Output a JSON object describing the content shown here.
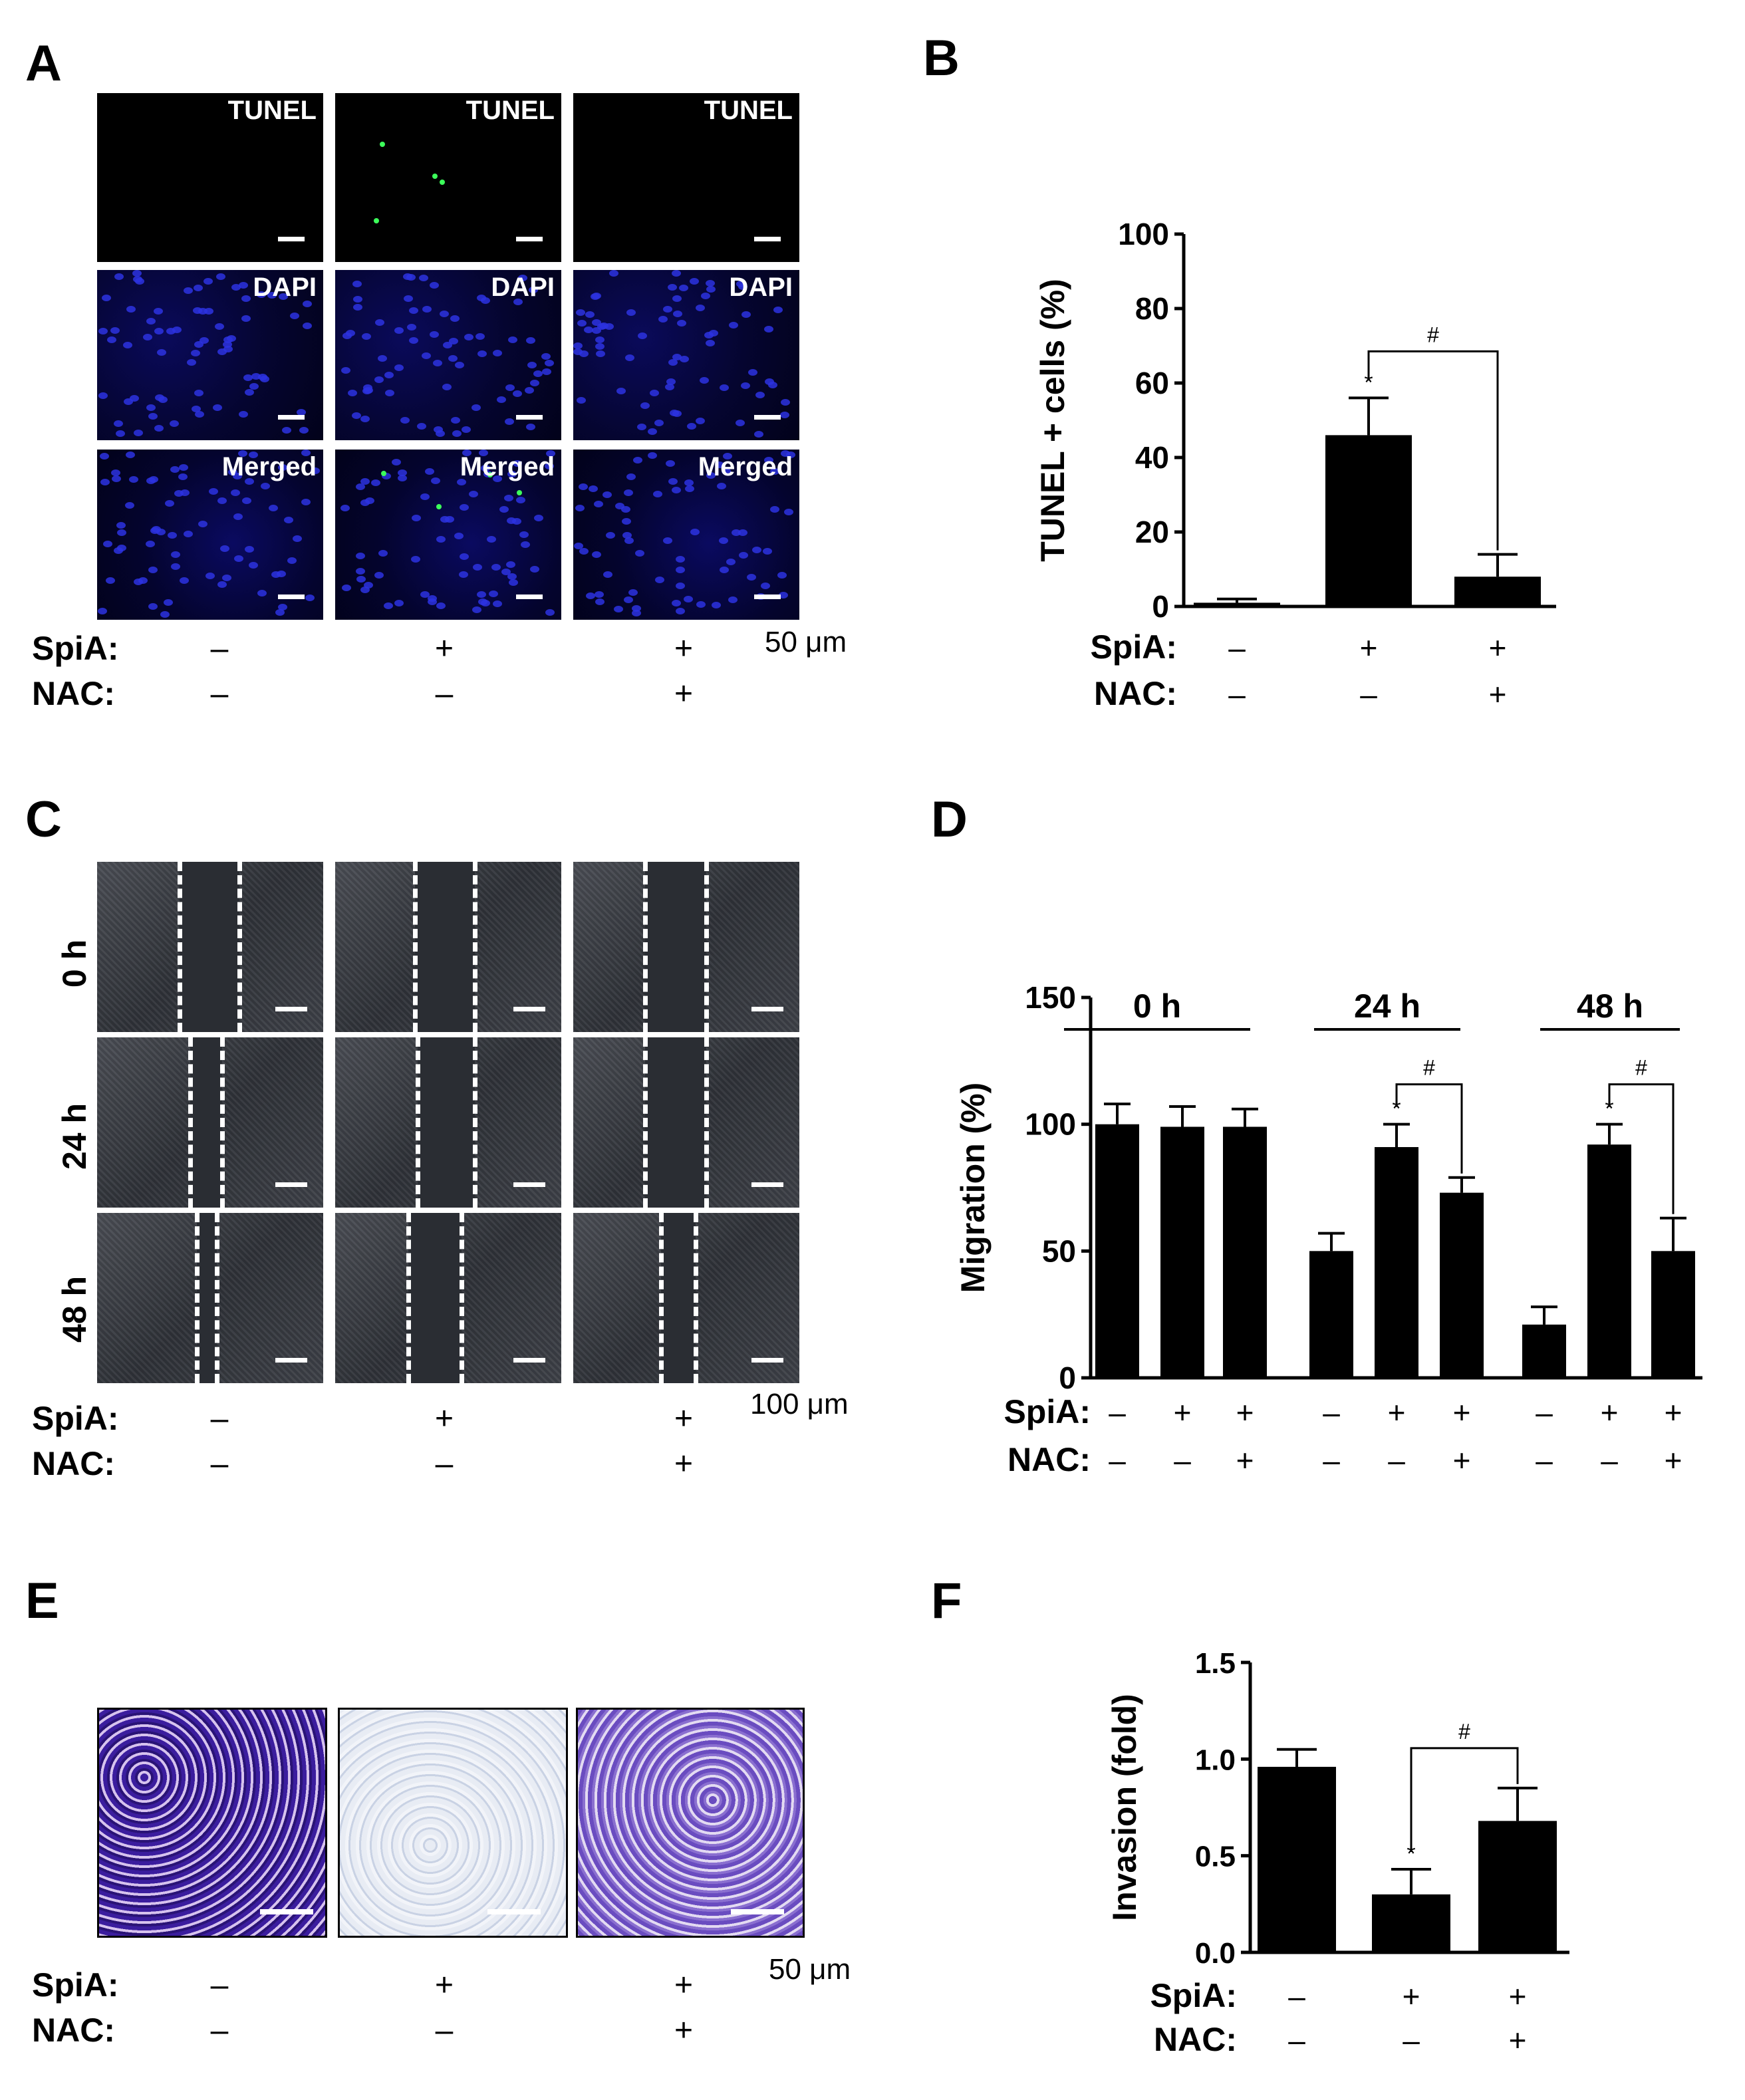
{
  "panels": {
    "A": {
      "letter": "A",
      "row_labels": [
        "TUNEL",
        "DAPI",
        "Merged"
      ],
      "scale_label": "50 μm",
      "spia_label": "SpiA:",
      "nac_label": "NAC:",
      "spia": [
        "–",
        "+",
        "+"
      ],
      "nac": [
        "–",
        "–",
        "+"
      ]
    },
    "B": {
      "letter": "B"
    },
    "C": {
      "letter": "C",
      "time_labels": [
        "0 h",
        "24 h",
        "48 h"
      ],
      "scale_label": "100 μm",
      "spia_label": "SpiA:",
      "nac_label": "NAC:",
      "spia": [
        "–",
        "+",
        "+"
      ],
      "nac": [
        "–",
        "–",
        "+"
      ]
    },
    "D": {
      "letter": "D"
    },
    "E": {
      "letter": "E",
      "scale_label": "50 μm",
      "spia_label": "SpiA:",
      "nac_label": "NAC:",
      "spia": [
        "–",
        "+",
        "+"
      ],
      "nac": [
        "–",
        "–",
        "+"
      ]
    },
    "F": {
      "letter": "F"
    }
  },
  "chart_data": [
    {
      "panel": "B",
      "type": "bar",
      "ylabel": "TUNEL + cells (%)",
      "ylim": [
        0,
        100
      ],
      "yticks": [
        0,
        20,
        40,
        60,
        80,
        100
      ],
      "values": [
        1,
        46,
        8
      ],
      "errors": [
        1,
        10,
        6
      ],
      "spia": [
        "–",
        "+",
        "+"
      ],
      "nac": [
        "–",
        "–",
        "+"
      ],
      "row_labels": [
        "SpiA:",
        "NAC:"
      ],
      "annotations": [
        {
          "bar": 1,
          "text": "*"
        }
      ],
      "brackets": [
        {
          "from": 1,
          "to": 2,
          "text": "#"
        }
      ],
      "colors": {
        "bar": "#000000"
      }
    },
    {
      "panel": "D",
      "type": "bar",
      "ylabel": "Migration (%)",
      "ylim": [
        0,
        150
      ],
      "yticks": [
        0,
        50,
        100,
        150
      ],
      "groups": [
        "0 h",
        "24 h",
        "48 h"
      ],
      "values": [
        100,
        99,
        99,
        50,
        91,
        73,
        21,
        92,
        50
      ],
      "errors": [
        8,
        8,
        7,
        7,
        9,
        6,
        7,
        8,
        13
      ],
      "spia": [
        "–",
        "+",
        "+",
        "–",
        "+",
        "+",
        "–",
        "+",
        "+"
      ],
      "nac": [
        "–",
        "–",
        "+",
        "–",
        "–",
        "+",
        "–",
        "–",
        "+"
      ],
      "row_labels": [
        "SpiA:",
        "NAC:"
      ],
      "annotations": [
        {
          "bar": 4,
          "text": "*"
        },
        {
          "bar": 7,
          "text": "*"
        }
      ],
      "brackets": [
        {
          "from": 4,
          "to": 5,
          "text": "#"
        },
        {
          "from": 7,
          "to": 8,
          "text": "#"
        }
      ],
      "colors": {
        "bar": "#000000"
      }
    },
    {
      "panel": "F",
      "type": "bar",
      "ylabel": "Invasion (fold)",
      "ylim": [
        0,
        1.5
      ],
      "yticks": [
        "0.0",
        "0.5",
        "1.0",
        "1.5"
      ],
      "values": [
        0.96,
        0.3,
        0.68
      ],
      "errors": [
        0.09,
        0.13,
        0.17
      ],
      "spia": [
        "–",
        "+",
        "+"
      ],
      "nac": [
        "–",
        "–",
        "+"
      ],
      "row_labels": [
        "SpiA:",
        "NAC:"
      ],
      "annotations": [
        {
          "bar": 1,
          "text": "*"
        }
      ],
      "brackets": [
        {
          "from": 1,
          "to": 2,
          "text": "#"
        }
      ],
      "colors": {
        "bar": "#000000"
      }
    }
  ]
}
